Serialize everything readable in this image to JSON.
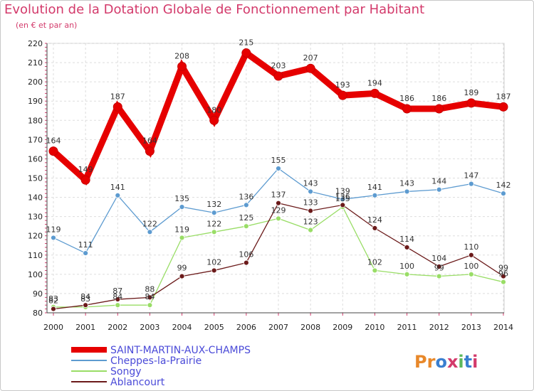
{
  "header": {
    "title": "Evolution de la Dotation Globale de Fonctionnement par Habitant",
    "subtitle": "(en € et par an)"
  },
  "logo": {
    "text": "Proxiti"
  },
  "chart_data": {
    "type": "line",
    "title": "Evolution de la Dotation Globale de Fonctionnement par Habitant",
    "subtitle": "(en € et par an)",
    "xlabel": "",
    "ylabel": "",
    "x": [
      "2000",
      "2001",
      "2002",
      "2003",
      "2004",
      "2005",
      "2006",
      "2007",
      "2008",
      "2009",
      "2010",
      "2011",
      "2012",
      "2013",
      "2014"
    ],
    "ylim": [
      80,
      220
    ],
    "yticks": [
      80,
      90,
      100,
      110,
      120,
      130,
      140,
      150,
      160,
      170,
      180,
      190,
      200,
      210,
      220
    ],
    "grid": true,
    "legend_position": "bottom-left",
    "series": [
      {
        "name": "SAINT-MARTIN-AUX-CHAMPS",
        "color": "#e60000",
        "values": [
          164,
          149,
          187,
          164,
          208,
          180,
          215,
          203,
          207,
          193,
          194,
          186,
          186,
          189,
          187
        ]
      },
      {
        "name": "Cheppes-la-Prairie",
        "color": "#5d9bd0",
        "values": [
          119,
          111,
          141,
          122,
          135,
          132,
          136,
          155,
          143,
          139,
          141,
          143,
          144,
          147,
          142
        ]
      },
      {
        "name": "Songy",
        "color": "#99dd66",
        "values": [
          83,
          83,
          84,
          84,
          119,
          122,
          125,
          129,
          123,
          135,
          102,
          100,
          99,
          100,
          96
        ]
      },
      {
        "name": "Ablancourt",
        "color": "#6b1a1a",
        "values": [
          82,
          84,
          87,
          88,
          99,
          102,
          106,
          137,
          133,
          136,
          124,
          114,
          104,
          110,
          99
        ]
      }
    ]
  }
}
